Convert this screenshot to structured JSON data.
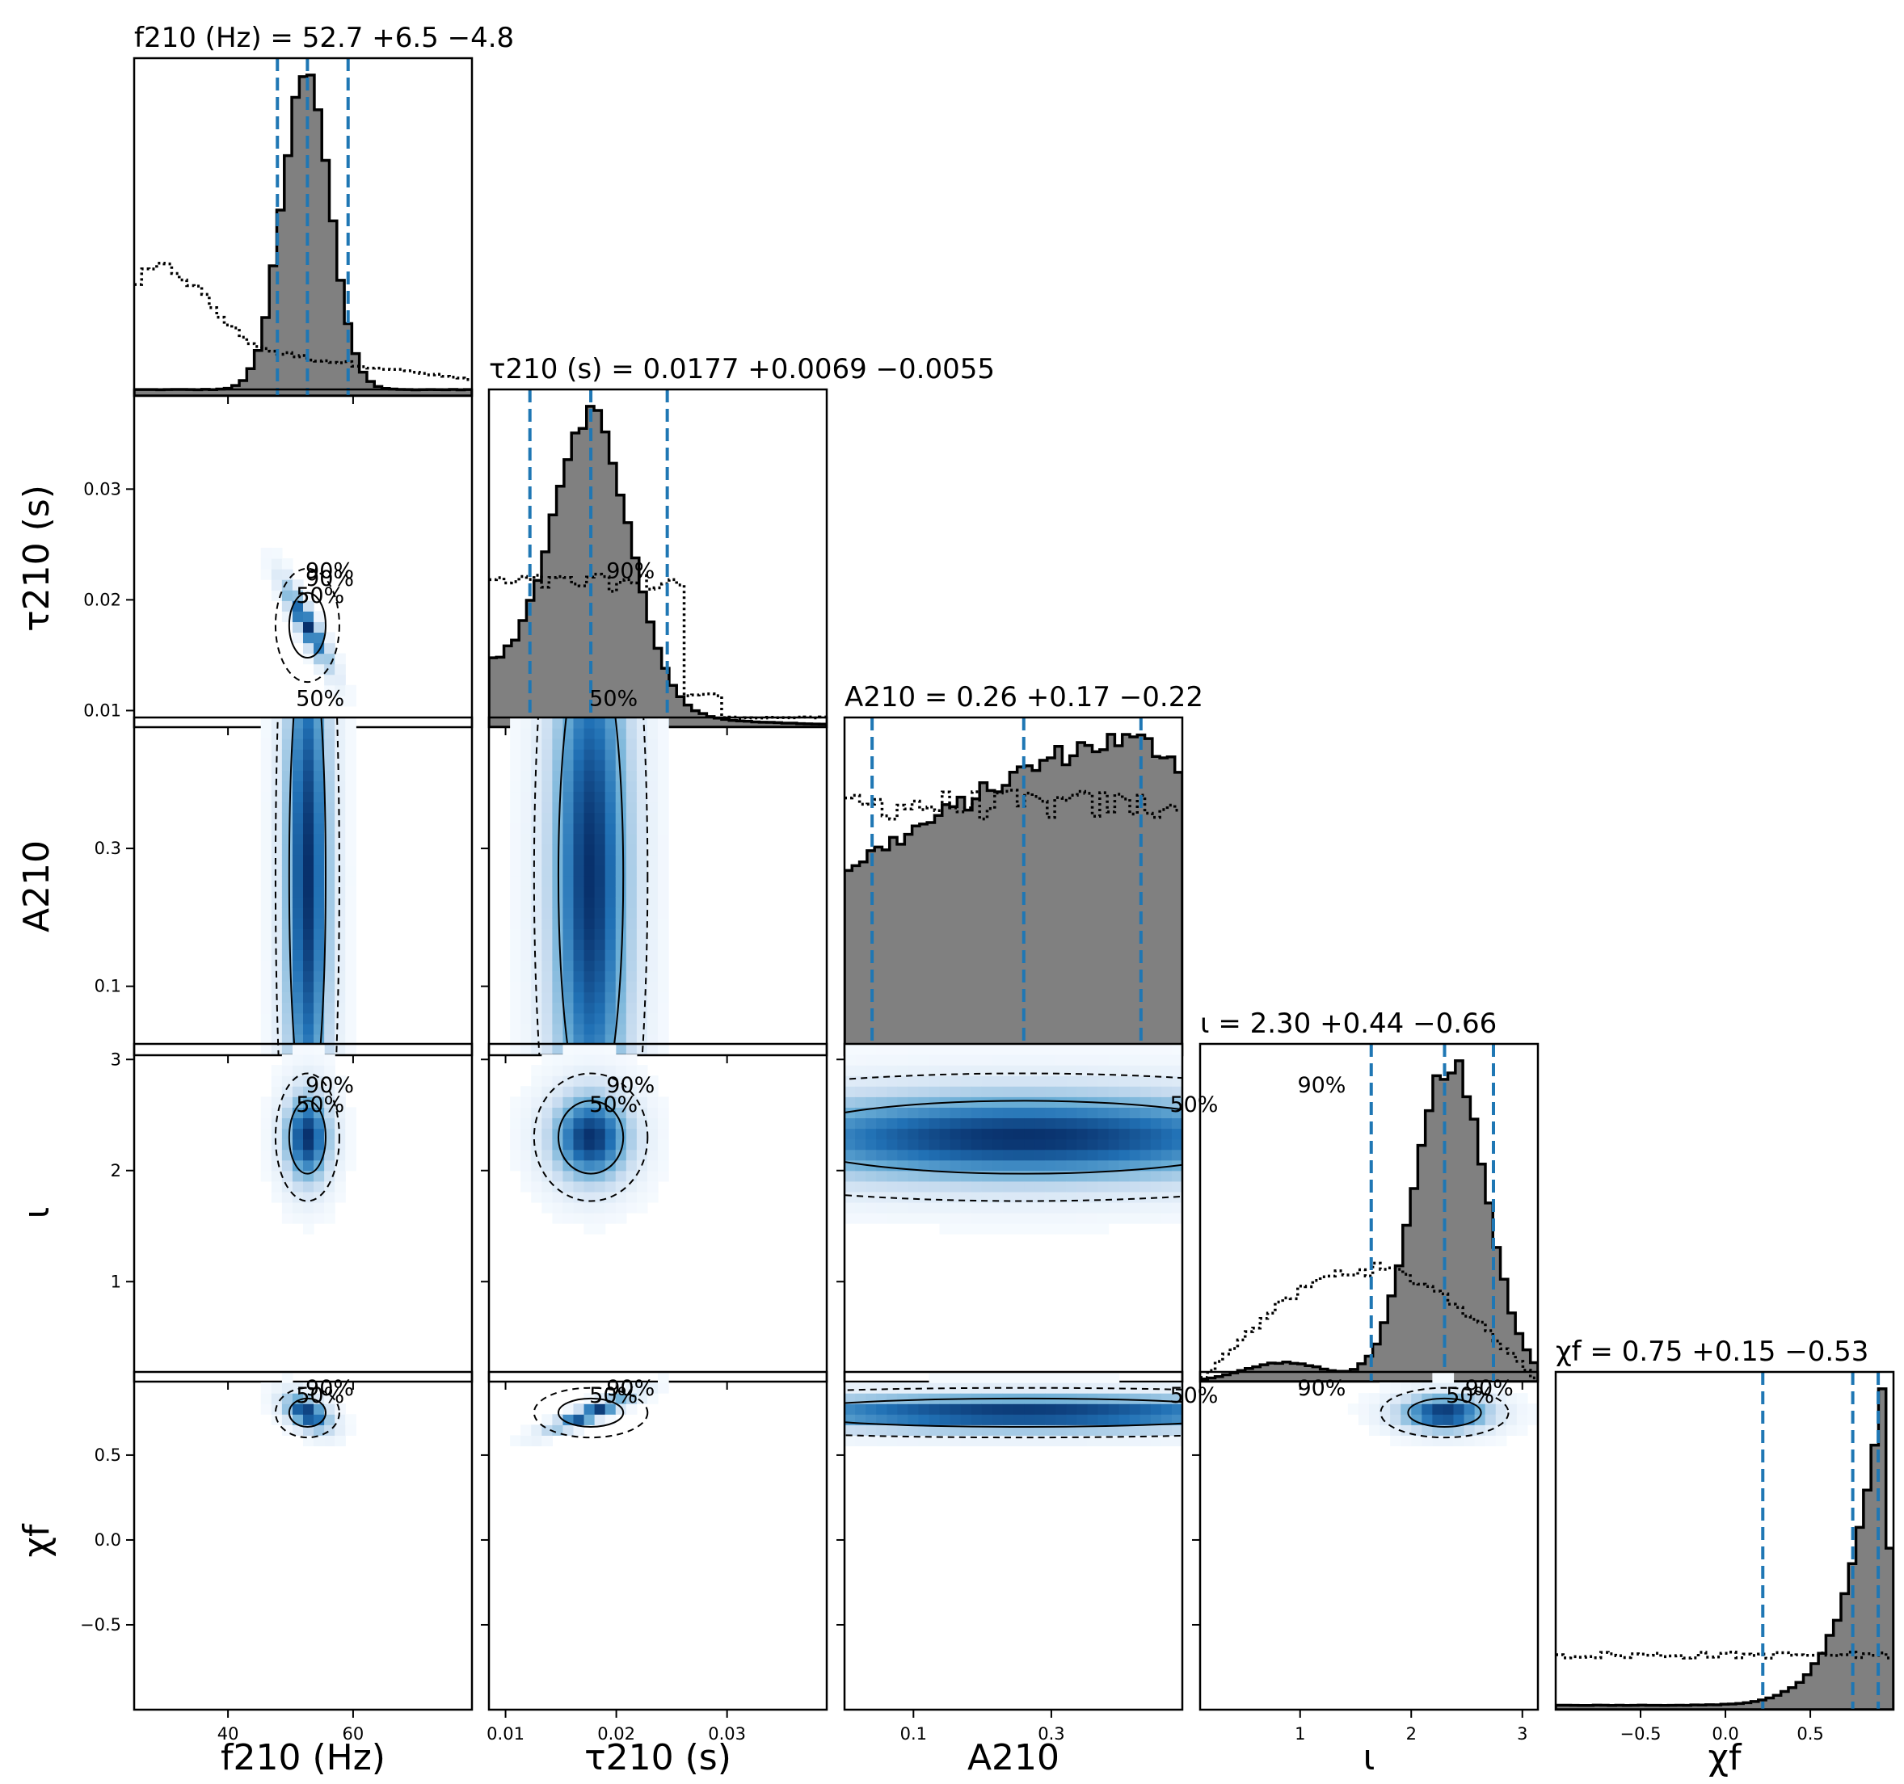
{
  "chart_data": {
    "type": "corner",
    "parameters": [
      {
        "key": "f210",
        "label": "f210 (Hz)",
        "title": "f210 (Hz) = 52.7 +6.5 −4.8",
        "median": 52.7,
        "plus": 6.5,
        "minus": 4.8,
        "range": [
          25,
          79
        ],
        "ticks": [
          40,
          60
        ],
        "tick_labels": [
          "40",
          "60"
        ],
        "posterior_peak": 52.5,
        "posterior_width": 3.8,
        "quantiles": [
          47.9,
          52.7,
          59.2
        ]
      },
      {
        "key": "tau210",
        "label": "τ210 (s)",
        "title": "τ210 (s) = 0.0177 +0.0069 −0.0055",
        "median": 0.0177,
        "plus": 0.0069,
        "minus": 0.0055,
        "range": [
          0.0085,
          0.039
        ],
        "ticks": [
          0.01,
          0.02,
          0.03
        ],
        "tick_labels": [
          "0.01",
          "0.02",
          "0.03"
        ],
        "posterior_peak": 0.0177,
        "posterior_width": 0.0035,
        "quantiles": [
          0.0122,
          0.0177,
          0.0246
        ]
      },
      {
        "key": "A210",
        "label": "A210",
        "title": "A210 = 0.26 +0.17 −0.22",
        "median": 0.26,
        "plus": 0.17,
        "minus": 0.22,
        "range": [
          0.0,
          0.49
        ],
        "ticks": [
          0.1,
          0.3
        ],
        "tick_labels": [
          "0.1",
          "0.3"
        ],
        "quantiles": [
          0.04,
          0.26,
          0.43
        ]
      },
      {
        "key": "iota",
        "label": "ι",
        "title": "ι = 2.30 +0.44 −0.66",
        "median": 2.3,
        "plus": 0.44,
        "minus": 0.66,
        "range": [
          0.1,
          3.14
        ],
        "ticks": [
          1,
          2,
          3
        ],
        "tick_labels": [
          "1",
          "2",
          "3"
        ],
        "posterior_peak": 2.35,
        "posterior_width": 0.32,
        "quantiles": [
          1.64,
          2.3,
          2.74
        ]
      },
      {
        "key": "chif",
        "label": "χf",
        "title": "χf = 0.75 +0.15 −0.53",
        "median": 0.75,
        "plus": 0.15,
        "minus": 0.53,
        "range": [
          -1.0,
          0.99
        ],
        "ticks": [
          -0.5,
          0.0,
          0.5
        ],
        "tick_labels": [
          "−0.5",
          "0.0",
          "0.5"
        ],
        "quantiles": [
          0.22,
          0.75,
          0.9
        ]
      }
    ],
    "contour_levels": [
      "50%",
      "90%"
    ],
    "quantile_line_color": "#1f77b4",
    "histogram_fill_color": "#808080",
    "density_colormap": [
      "#f7fbff",
      "#c6dbef",
      "#6baed6",
      "#2171b5",
      "#08306b"
    ],
    "prior_style": "dotted",
    "legend": "none",
    "grid": false
  }
}
